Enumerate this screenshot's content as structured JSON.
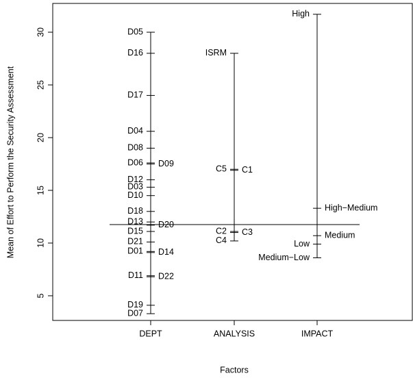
{
  "chart_data": {
    "type": "design",
    "x_label": "Factors",
    "y_label": "Mean of Effort to Perform the Security Assessment",
    "categories": [
      "DEPT",
      "ANALYSIS",
      "IMPACT"
    ],
    "factors": [
      {
        "name": "DEPT",
        "levels": [
          "D05",
          "D16",
          "D17",
          "D04",
          "D08",
          "D06",
          "D09",
          "D12",
          "D03",
          "D10",
          "D18",
          "D13",
          "D20",
          "D15",
          "D21",
          "D01",
          "D14",
          "D11",
          "D22",
          "D19",
          "D07"
        ],
        "values": [
          30.0,
          28.0,
          24.0,
          20.6,
          19.0,
          17.6,
          17.5,
          16.0,
          15.3,
          14.5,
          13.0,
          12.0,
          11.7,
          11.1,
          10.1,
          9.2,
          9.1,
          6.9,
          6.8,
          4.1,
          3.3
        ]
      },
      {
        "name": "ANALYSIS",
        "levels": [
          "ISRM",
          "C5",
          "C1",
          "C2",
          "C3",
          "C4"
        ],
        "values": [
          28.0,
          17.0,
          16.9,
          11.1,
          11.0,
          10.2
        ]
      },
      {
        "name": "IMPACT",
        "levels": [
          "High",
          "High−Medium",
          "Medium",
          "Low",
          "Medium−Low"
        ],
        "values": [
          31.7,
          13.3,
          10.7,
          9.9,
          8.6
        ]
      }
    ],
    "grand_mean": 11.75,
    "ylim": [
      2.66,
      32.73
    ],
    "yticks": [
      5,
      10,
      15,
      20,
      25,
      30
    ]
  }
}
